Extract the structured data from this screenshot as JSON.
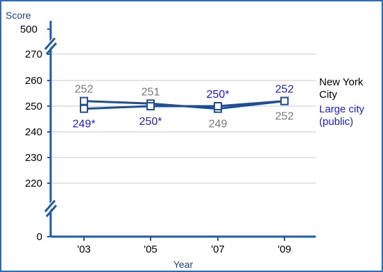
{
  "chart_data": {
    "type": "line",
    "xlabel": "Year",
    "ylabel": "Score",
    "categories": [
      "'03",
      "'05",
      "'07",
      "'09"
    ],
    "y_ticks": [
      "500",
      "270",
      "260",
      "250",
      "240",
      "230",
      "220",
      "0"
    ],
    "axis_breaks": [
      "between 500 and 270",
      "between 220 and 0"
    ],
    "grid": true,
    "series": [
      {
        "name": "New York City",
        "legend_lines": [
          "New York",
          "City"
        ],
        "values": [
          252,
          251,
          249,
          252
        ],
        "labels": [
          "252",
          "251",
          "249",
          "252"
        ],
        "color": "#888888",
        "label_color": "#777777",
        "legend_color": "#000000"
      },
      {
        "name": "Large city (public)",
        "legend_lines": [
          "Large city",
          "(public)"
        ],
        "values": [
          249,
          250,
          250,
          252
        ],
        "labels": [
          "249*",
          "250*",
          "250*",
          "252"
        ],
        "color": "#1a1adf",
        "label_color": "#1a1adf",
        "legend_color": "#1a1adf"
      }
    ],
    "line_color": "#1f4e96",
    "axis_color": "#1f5aa6"
  }
}
